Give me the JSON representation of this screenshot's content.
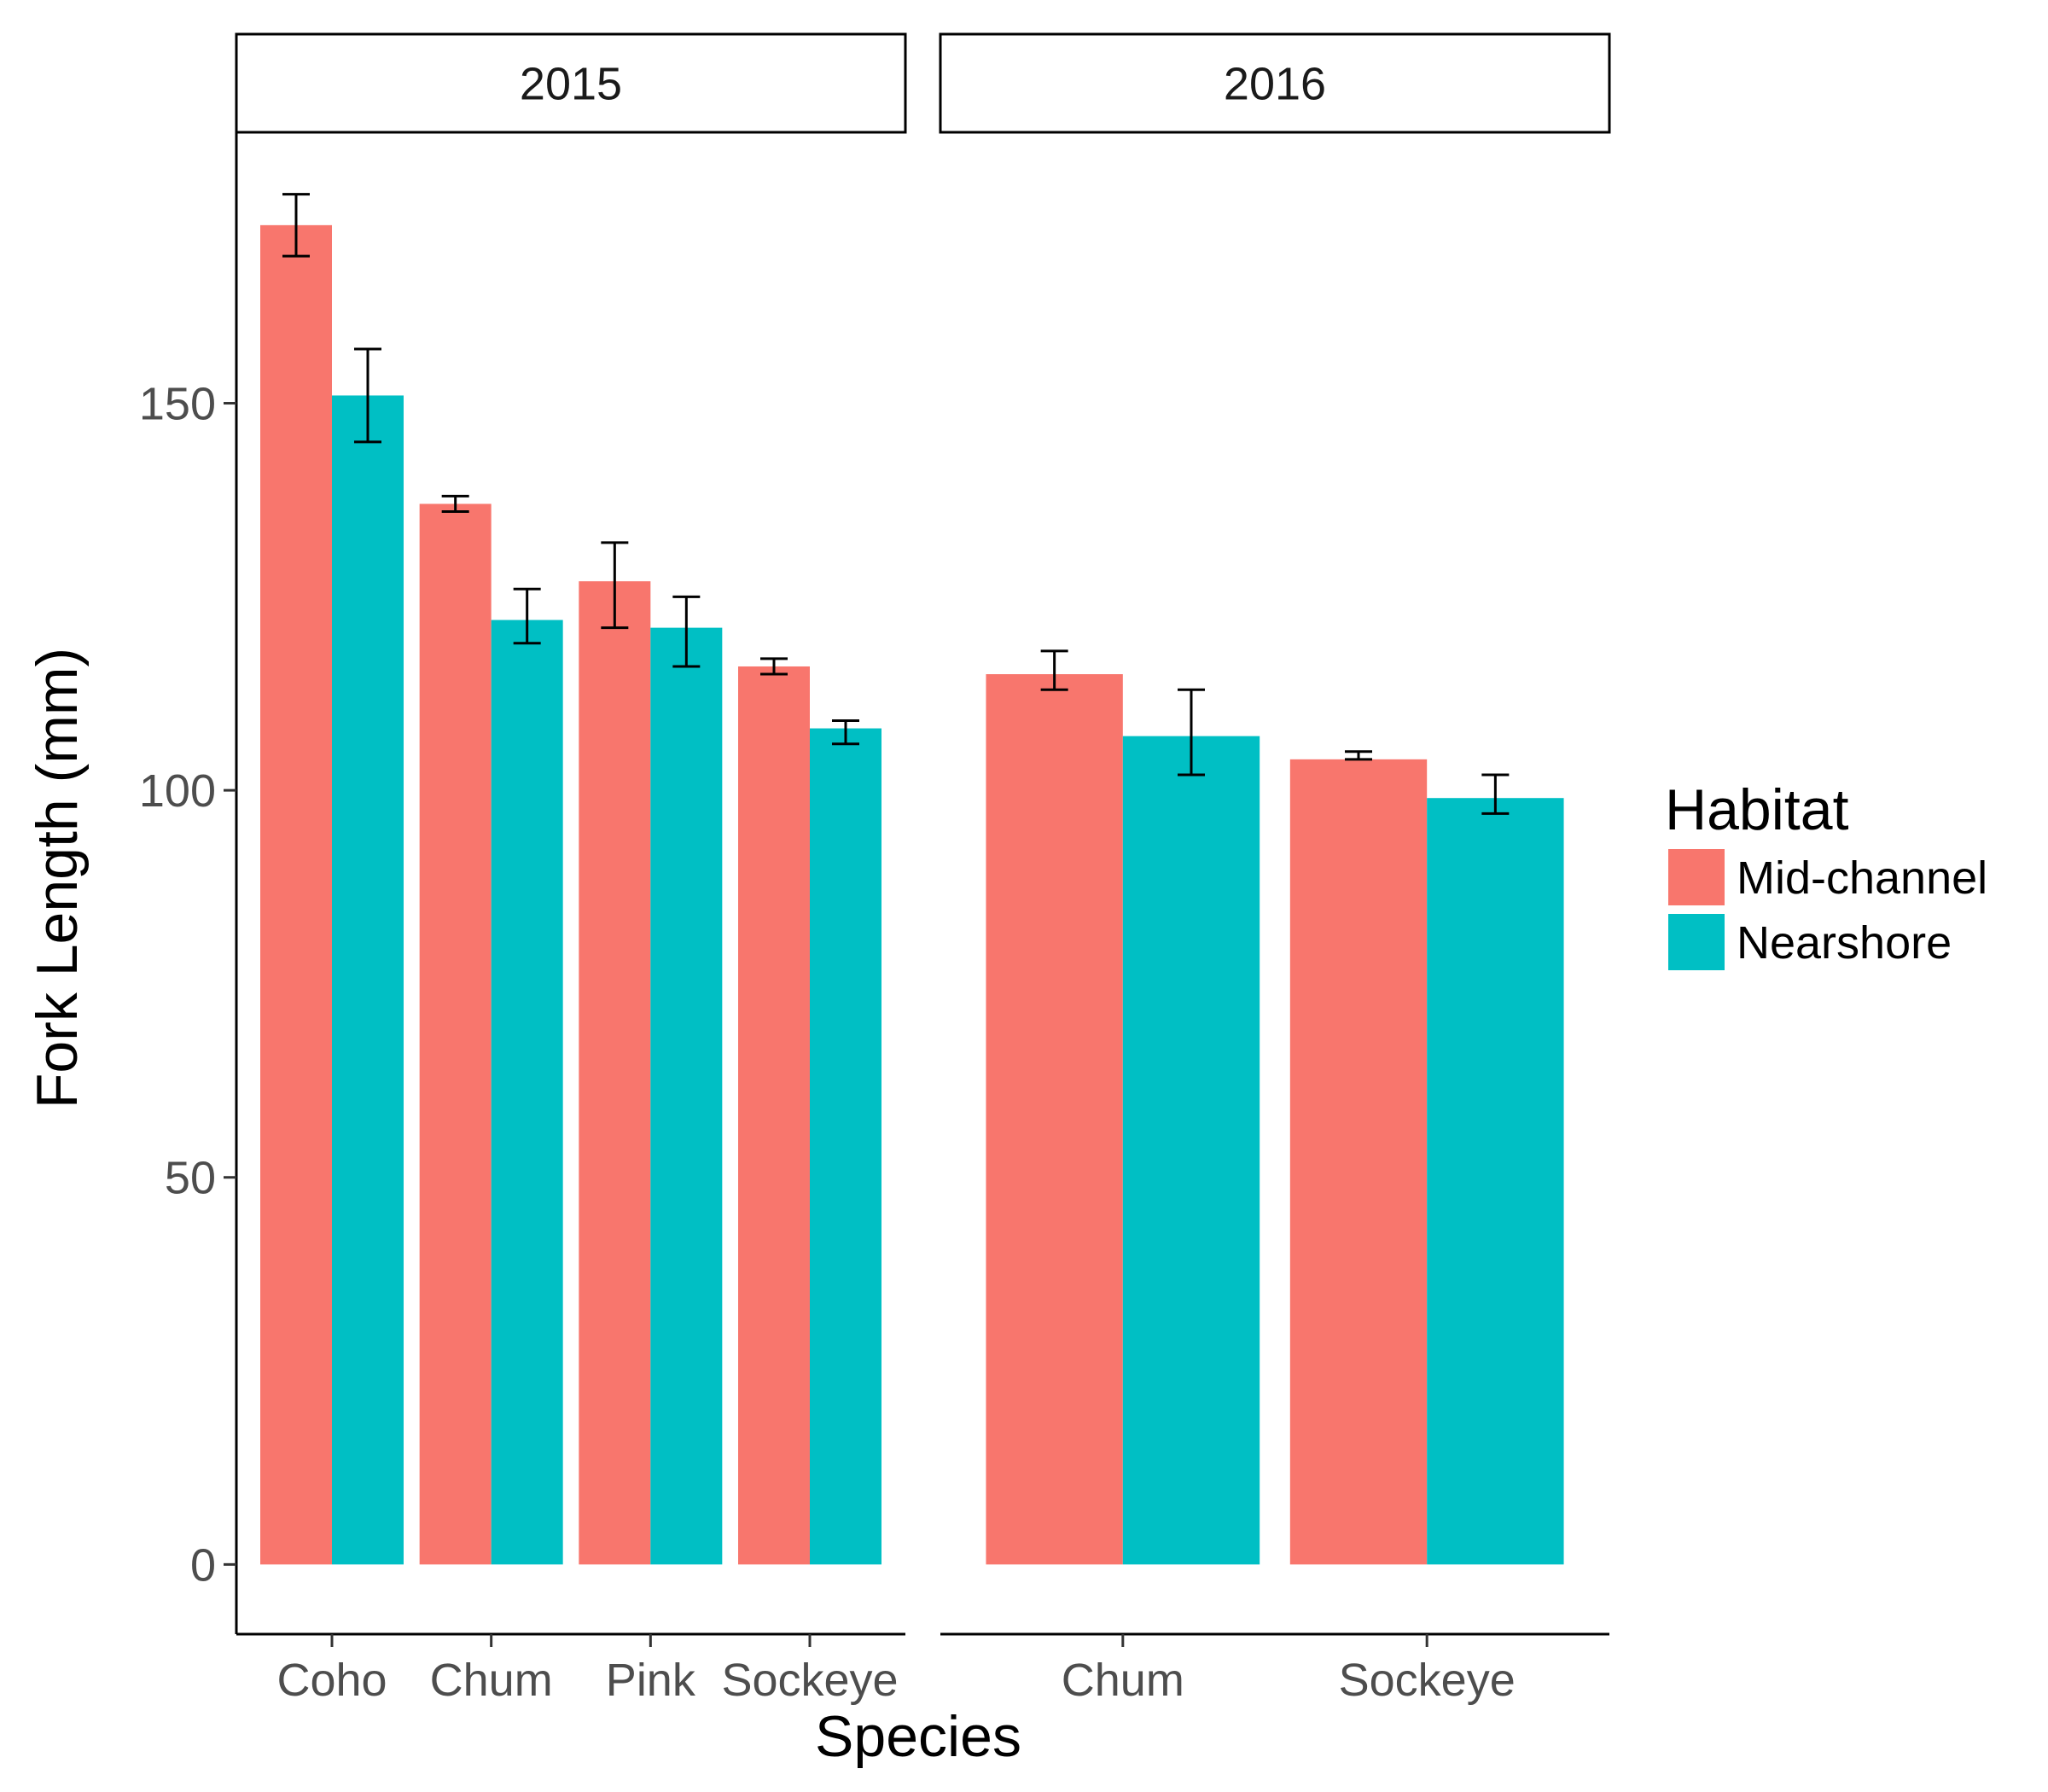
{
  "chart_data": {
    "type": "bar",
    "xlabel": "Species",
    "ylabel": "Fork Length (mm)",
    "ylim": [
      -9,
      185
    ],
    "yticks": [
      0,
      50,
      100,
      150
    ],
    "grid": false,
    "legend": {
      "title": "Habitat",
      "position": "right",
      "entries": [
        {
          "name": "Mid-channel",
          "color": "#F8766D"
        },
        {
          "name": "Nearshore",
          "color": "#00BFC4"
        }
      ]
    },
    "panels": [
      {
        "label": "2015",
        "categories": [
          "Coho",
          "Chum",
          "Pink",
          "Sockeye"
        ],
        "series": [
          {
            "name": "Mid-channel",
            "values": [
              173,
              137,
              127,
              116
            ],
            "err_low": [
              169,
              136,
              121,
              115
            ],
            "err_high": [
              177,
              138,
              132,
              117
            ]
          },
          {
            "name": "Nearshore",
            "values": [
              151,
              122,
              121,
              108
            ],
            "err_low": [
              145,
              119,
              116,
              106
            ],
            "err_high": [
              157,
              126,
              125,
              109
            ]
          }
        ]
      },
      {
        "label": "2016",
        "categories": [
          "Chum",
          "Sockeye"
        ],
        "series": [
          {
            "name": "Mid-channel",
            "values": [
              115,
              104
            ],
            "err_low": [
              113,
              104
            ],
            "err_high": [
              118,
              105
            ]
          },
          {
            "name": "Nearshore",
            "values": [
              107,
              99
            ],
            "err_low": [
              102,
              97
            ],
            "err_high": [
              113,
              102
            ]
          }
        ]
      }
    ]
  }
}
